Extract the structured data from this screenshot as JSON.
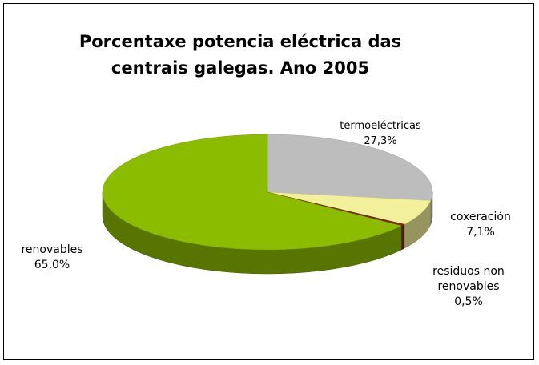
{
  "chart_data": {
    "type": "pie3d",
    "title": "Porcentaxe potencia eléctrica das centrais galegas. Ano 2005",
    "categories": [
      "termoeléctricas",
      "coxeración",
      "residuos non renovables",
      "renovables"
    ],
    "values": [
      27.3,
      7.1,
      0.5,
      65.0
    ],
    "value_labels": [
      "27,3%",
      "7,1%",
      "0,5%",
      "65,0%"
    ],
    "colors": [
      "#bdbdbd",
      "#f2f09a",
      "#7a2b12",
      "#8cbc00"
    ]
  }
}
